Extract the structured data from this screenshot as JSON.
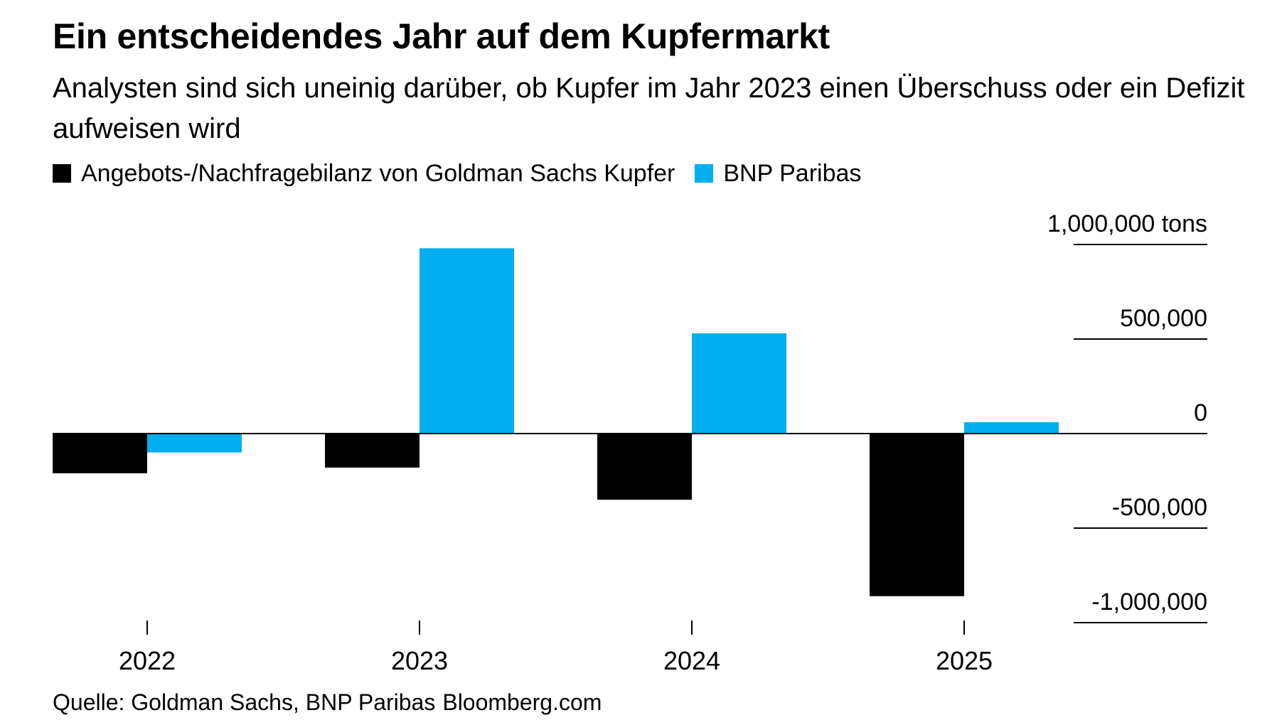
{
  "title": "Ein entscheidendes Jahr auf dem Kupfermarkt",
  "subtitle": "Analysten sind sich uneinig darüber, ob Kupfer im Jahr 2023 einen Überschuss oder ein Defizit aufweisen wird",
  "legend": [
    {
      "label": "Angebots-/Nachfragebilanz von Goldman Sachs Kupfer",
      "color": "#000000"
    },
    {
      "label": "BNP Paribas",
      "color": "#00aeef"
    }
  ],
  "source": {
    "text": "Quelle: Goldman Sachs, BNP Paribas",
    "brand": "Bloomberg.com"
  },
  "chart_data": {
    "type": "bar",
    "title": "Ein entscheidendes Jahr auf dem Kupfermarkt",
    "categories": [
      "2022",
      "2023",
      "2024",
      "2025"
    ],
    "series": [
      {
        "name": "Angebots-/Nachfragebilanz von Goldman Sachs Kupfer",
        "color": "#000000",
        "values": [
          -210000,
          -180000,
          -350000,
          -860000
        ]
      },
      {
        "name": "BNP Paribas",
        "color": "#00aeef",
        "values": [
          -100000,
          980000,
          530000,
          60000
        ]
      }
    ],
    "y_ticks": [
      {
        "value": 1000000,
        "label": "1,000,000 tons"
      },
      {
        "value": 500000,
        "label": "500,000"
      },
      {
        "value": 0,
        "label": "0"
      },
      {
        "value": -500000,
        "label": "-500,000"
      },
      {
        "value": -1000000,
        "label": "-1,000,000"
      }
    ],
    "ylim": [
      -1000000,
      1000000
    ],
    "y_axis_position": "right",
    "legend_position": "top-left",
    "grid": false,
    "xlabel": "",
    "ylabel": ""
  }
}
